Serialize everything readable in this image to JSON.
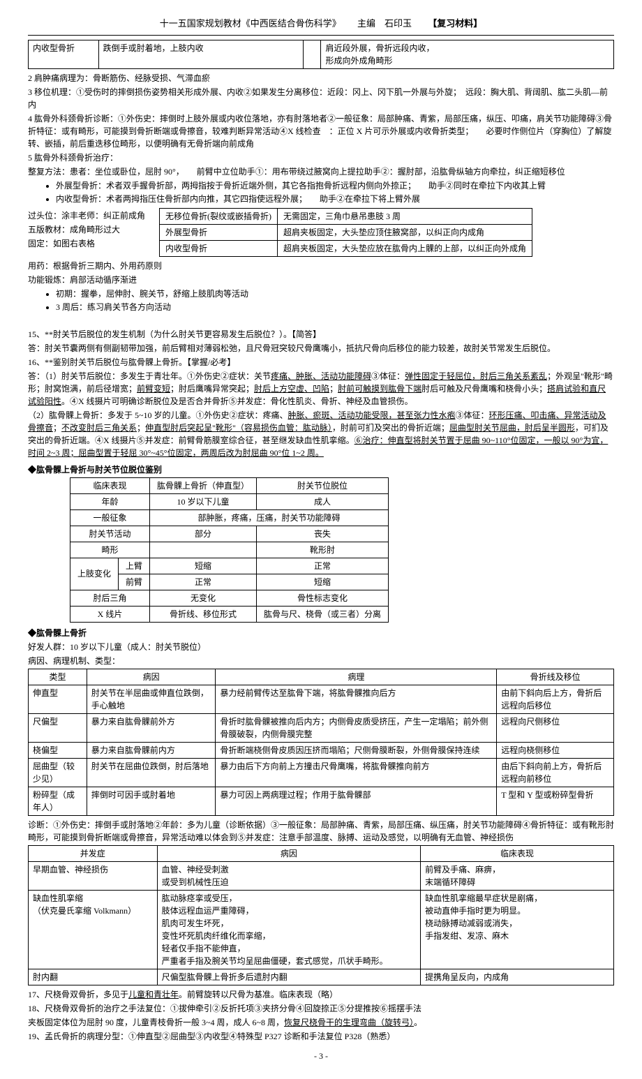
{
  "header": {
    "series": "十一五国家规划教材《中西医结合骨伤科学》",
    "editor": "主编　石印玉",
    "tag": "【复习材料】"
  },
  "toprow": {
    "c1": "内收型骨折",
    "c2": "跌倒手或肘着地，上肢内收",
    "c3": "",
    "c4": "肩近段外展，骨折远段内收，\n形成向外成角畸形"
  },
  "body": [
    "2 肩肿痛病理为：骨断筋伤、经脉受损、气滞血瘀",
    "3 移位机理：①受伤时的摔倒损伤姿势相关形成外展、内收②如果发生分离移位：近段：冈上、冈下肌一外展与外旋；　远段：胸大肌、背阔肌、肱二头肌—前内",
    "4 肱骨外科颈骨折诊断：①外伤史：摔倒时上肢外展或内收位落地，亦有肘落地者②一般征象：局部肿痛、青紫，局部压痛，纵压、叩痛，肩关节功能障碍③骨折特征：或有畸形，可能摸到骨折断端或骨擦音，较难判断异常活动④X 线检查　：正位 X 片可示外展或内收骨折类型；　　必要时作侧位片（穿胸位）了解旋转、嵌插，前后重迭移位畸形，以便明确有无骨折端向前成角",
    "5 肱骨外科颈骨折治疗：",
    "整复方法：患者：坐位或卧位，屈肘 90°，　　前臂中立位助手①：用布带绕过腋窝向上提拉助手②：握肘部，沿肱骨纵轴方向牵拉，纠正缩短移位"
  ],
  "bullets1": [
    "外展型骨折：术者双手握骨折部，两拇指按于骨折近端外侧，其它各指抱骨折远程内侧向外捺正；　　助手②同时在牵拉下内收其上臂",
    "内收型骨折：术者两拇指压住骨折部内向推，其它四指使远程外展；　　助手②在牵拉下将上臂外展"
  ],
  "body2": [
    "过头位：涂丰老师：纠正前成角",
    "五版教材：成角畸形过大",
    "固定：如图右表格"
  ],
  "midtable": [
    [
      "无移位骨折(裂纹或嵌插骨折)",
      "无需固定，三角巾悬吊患肢 3 周"
    ],
    [
      "外展型骨折",
      "超肩夹板固定，大头垫应顶住腋窝部，以纠正向内成角"
    ],
    [
      "内收型骨折",
      "超肩夹板固定，大头垫应放在肱骨内上髁的上部，以纠正向外成角"
    ]
  ],
  "body3": [
    "用药：根据骨折三期内、外用药原则",
    "功能锻炼：肩部活动循序渐进"
  ],
  "bullets2": [
    "初期：握拳，屈伸肘、腕关节，舒缩上肢肌肉等活动",
    "3 周后：练习肩关节各方向活动"
  ],
  "body4": [
    "15、**肘关节后脱位的发生机制（为什么肘关节更容易发生后脱位？）。【简答】",
    "答：肘关节囊两侧有侧副韧带加强，前后臂相对薄弱松弛，且尺骨冠突较尺骨鹰嘴小，抵抗尺骨向后移位的能力较差，故肘关节常发生后脱位。",
    "16、**鉴别肘关节后脱位与肱骨髁上骨折。【掌握/必考】"
  ],
  "ans1": {
    "pre": "答：（1）肘关节后脱位：多发生于青壮年。①外伤史②症状：关节",
    "u1": "疼痛、肿胀、活动功能障碍",
    "mid1": "③体征：",
    "u2": "弹性固定于轻屈位，肘后三角关系紊乱",
    "mid2": "；外观呈\"靴形\"畸形；肘窝饱满，前后径增宽；",
    "u3": "前臂变短",
    "mid3": "；肘后鹰嘴异常突起；",
    "u4": "肘后上方空虚、凹陷",
    "mid4": "；",
    "u5": "肘前可触摸到肱骨下端",
    "mid5": "肘后可触及尺骨鹰嘴和桡骨小头；",
    "u6": "搭肩试验和直尺试验阳性",
    "mid6": "。④X 线摄片可明确诊断脱位及是否合并骨折⑤并发症：骨化性肌炎、骨折、神经及血管损伤。"
  },
  "ans2": {
    "pre": "（2）肱骨髁上骨折：多发于 5~10 岁的儿童。①外伤史②症状：疼痛、",
    "u1": "肿胀、瘀斑、活动功能受限，甚至张力性水疱",
    "mid1": "③体征：",
    "u2": "环形压痛、叩击痛、异常活动及骨擦音",
    "mid2": "；",
    "u3": "不改变肘后三角关系",
    "mid3": "；",
    "u4": "伸直型肘后突起呈\"靴形\"（容易损伤血管：肱动脉）",
    "mid4": "，肘前可扪及突出的骨折近端；",
    "u5": "屈曲型肘关节屈曲，肘后呈半圆形",
    "mid5": "，可扪及突出的骨折近端。④X 线摄片⑤并发症：前臂骨筋膜室综合征，甚至继发缺血性肌挛缩。",
    "u6": "⑥治疗：伸直型将肘关节置于屈曲 90~110°位固定，一般以 90°为宜，时间 2~3 周；屈曲型置于轻屈 30°~45°位固定，两周后改为肘屈曲 90°位 1~2 周。"
  },
  "sec1": "◆肱骨髁上骨折与肘关节位脱位鉴别",
  "cmp": {
    "head": [
      "临床表现",
      "肱骨髁上骨折（伸直型）",
      "肘关节位脱位"
    ],
    "rows": [
      [
        "年龄",
        "10 岁以下儿童",
        "成人"
      ],
      {
        "merge": true,
        "c0": "一般征象",
        "c12": "部肿胀，疼痛，压痛，肘关节功能障碍"
      },
      [
        "肘关节活动",
        "部分",
        "丧失"
      ],
      [
        "畸形",
        "",
        "靴形肘"
      ],
      {
        "group": "上肢变化",
        "sub": "上臂",
        "c1": "短缩",
        "c2": "正常"
      },
      {
        "group_cont": true,
        "sub": "前臂",
        "c1": "正常",
        "c2": "短缩"
      },
      [
        "肘后三角",
        "无变化",
        "骨性标志变化"
      ],
      [
        "X 线片",
        "骨折线、移位形式",
        "肱骨与尺、桡骨（或三者）分离"
      ]
    ]
  },
  "sec2": "◆肱骨髁上骨折",
  "sec2_lines": [
    "好发人群：10 岁以下儿童（成人：肘关节脱位）",
    "病因、病理机制、类型："
  ],
  "types": {
    "head": [
      "类型",
      "病因",
      "病理",
      "骨折线及移位"
    ],
    "rows": [
      [
        "伸直型",
        "肘关节在半屈曲或伸直位跌倒，手心触地",
        "暴力经前臂传达至肱骨下端，将肱骨髁推向后方",
        "由前下斜向后上方，骨折后远程向后移位"
      ],
      [
        "尺偏型",
        "暴力来自肱骨髁前外方",
        "骨折时肱骨髁被推向后内方；内侧骨皮质受挤压，产生一定塌陷；前外侧骨膜破裂，内侧骨膜完整",
        "远程向尺侧移位"
      ],
      [
        "桡偏型",
        "暴力来自肱骨髁前内方",
        "骨折断端桡侧骨皮质因压挤而塌陷；尺侧骨膜断裂，外侧骨膜保持连续",
        "远程向桡侧移位"
      ],
      [
        "屈曲型（较少见）",
        "肘关节在屈曲位跌倒，肘后落地",
        "暴力由后下方向前上方撞击尺骨鹰嘴，将肱骨髁推向前方",
        "由后下斜向前上方，骨折后远程向前移位"
      ],
      [
        "粉碎型（成年人）",
        "摔倒时可因手或肘着地",
        "暴力可因上两病理过程；作用于肱骨髁部",
        "T 型和 Y 型或粉碎型骨折"
      ]
    ]
  },
  "diag": "诊断：①外伤史：摔倒手或肘落地②年龄：多为儿童（诊断依据）③一般征象：局部肿痛、青紫，局部压痛、纵压痛，肘关节功能障碍④骨折特征：或有靴形肘畸形，可能摸到骨折断端或骨擦音，异常活动难以体会到⑤并发症：注意手部温度、脉搏、运动及感觉，以明确有无血管、神经损伤",
  "comp": {
    "head": [
      "并发症",
      "病因",
      "临床表现"
    ],
    "r1": {
      "c0": "早期血管、神经损伤",
      "c1a": "血管、神经受刺激",
      "c1b": "或受到机械性压迫",
      "c2a": "前臂及手痛、麻痹，",
      "c2b": "末端循环障碍"
    },
    "r2": {
      "c0": "缺血性肌挛缩\n（伏克曼氏挛缩 Volkmann）",
      "c1": "肱动脉痉挛或受压，\n肢体远程血运严重障碍，\n肌肉可发生坏死，\n变性坏死肌肉纤维化而挛缩，\n轻者仅手指不能伸直，\n严重者手指及腕关节均呈屈曲僵硬，套式感觉，爪状手畸形。",
      "c2": "缺血性肌挛缩最早症状是剧痛，\n被动直伸手指时更为明显。\n桡动脉搏动减弱或消失，\n手指发绀、发凉、麻木"
    },
    "r3": {
      "c0": "肘内翻",
      "c1": "尺偏型肱骨髁上骨折多后遗肘内翻",
      "c2": "提携角呈反向，内成角"
    }
  },
  "tail": [
    {
      "pre": "17、尺桡骨双骨折，多见于",
      "u": "儿童和青壮年",
      "post": "。前臂旋转以尺骨为基准。临床表现（略）"
    },
    {
      "pre": "18、尺桡骨双骨折的治疗之手法复位：①拔伸牵引②反折托项③夹挤分骨④回旋捺正⑤分提推按⑥摇摆手法",
      "u": "",
      "post": ""
    },
    {
      "pre": "夹板固定体位为屈肘 90 度，儿童青枝骨折一般 3~4 周，成人 6~8 周，",
      "u": "恢复尺桡骨干的生理弯曲（旋转弓）",
      "post": "。"
    },
    {
      "pre": "19、孟氏骨折的病理分型：①伸直型②屈曲型③内收型④特殊型 P327 诊断和手法复位 P328（熟悉）",
      "u": "",
      "post": ""
    }
  ],
  "pageno": "- 3 -"
}
